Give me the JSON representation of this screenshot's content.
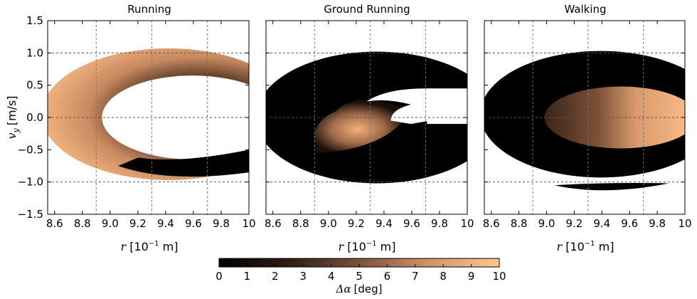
{
  "chart_data": {
    "type": "heatmap",
    "ylabel": "v_y [m/s]",
    "ylabel_var": "v",
    "ylabel_sub": "y",
    "ylabel_unit": "[m/s]",
    "xlabel_var": "r",
    "xlabel_unit": "[10",
    "xlabel_exp": "−1",
    "xlabel_unit_tail": " m]",
    "xlim": [
      8.55,
      10.0
    ],
    "ylim": [
      -1.5,
      1.5
    ],
    "xticks": [
      "8.6",
      "8.8",
      "9.0",
      "9.2",
      "9.4",
      "9.6",
      "9.8",
      "10"
    ],
    "xtick_values": [
      8.6,
      8.8,
      9.0,
      9.2,
      9.4,
      9.6,
      9.8,
      10.0
    ],
    "yticks": [
      "1.5",
      "1.0",
      "0.5",
      "0.0",
      "−0.5",
      "−1.0",
      "−1.5"
    ],
    "ytick_values": [
      1.5,
      1.0,
      0.5,
      0.0,
      -0.5,
      -1.0,
      -1.5
    ],
    "grid_x": [
      8.9,
      9.3,
      9.7
    ],
    "grid_y": [
      1.0,
      0.0,
      -1.0
    ],
    "panels": [
      {
        "title": "Running"
      },
      {
        "title": "Ground Running"
      },
      {
        "title": "Walking"
      }
    ],
    "colorbar": {
      "label": "Δα [deg]",
      "label_var": "Δα",
      "label_unit": "[deg]",
      "min": 0,
      "max": 10,
      "ticks": [
        "0",
        "1",
        "2",
        "3",
        "4",
        "5",
        "6",
        "7",
        "8",
        "9",
        "10"
      ],
      "colors": [
        "#000000",
        "#5a3a28",
        "#b07a56",
        "#e8a572",
        "#ffc58c"
      ]
    }
  }
}
